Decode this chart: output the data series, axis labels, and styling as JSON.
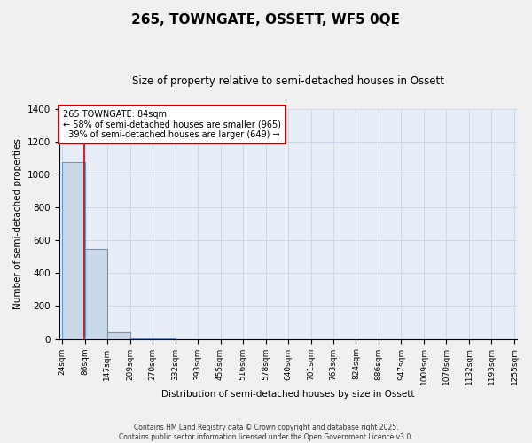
{
  "title": "265, TOWNGATE, OSSETT, WF5 0QE",
  "subtitle": "Size of property relative to semi-detached houses in Ossett",
  "xlabel": "Distribution of semi-detached houses by size in Ossett",
  "ylabel": "Number of semi-detached properties",
  "bin_edges": [
    24,
    86,
    147,
    209,
    270,
    332,
    393,
    455,
    516,
    578,
    640,
    701,
    763,
    824,
    886,
    947,
    1009,
    1070,
    1132,
    1193,
    1255
  ],
  "bar_heights": [
    1075,
    550,
    40,
    2,
    1,
    0,
    0,
    0,
    0,
    0,
    0,
    0,
    0,
    0,
    0,
    0,
    0,
    0,
    0,
    0
  ],
  "bar_color": "#c8d8e8",
  "bar_edge_color": "#5b9bd5",
  "property_size": 84,
  "pct_smaller": 58,
  "n_smaller": 965,
  "pct_larger": 39,
  "n_larger": 649,
  "vline_color": "#cc0000",
  "annotation_box_color": "#cc0000",
  "ylim": [
    0,
    1400
  ],
  "yticks": [
    0,
    200,
    400,
    600,
    800,
    1000,
    1200,
    1400
  ],
  "grid_color": "#ccd8e8",
  "background_color": "#e8eef8",
  "fig_background": "#f0f0f0",
  "footer_line1": "Contains HM Land Registry data © Crown copyright and database right 2025.",
  "footer_line2": "Contains public sector information licensed under the Open Government Licence v3.0."
}
